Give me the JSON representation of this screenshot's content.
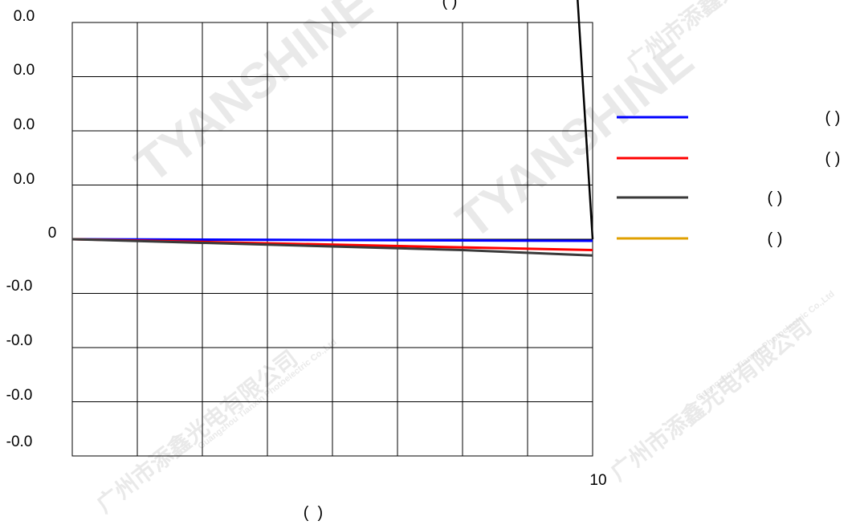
{
  "chart_data": {
    "type": "line",
    "title": "(   )",
    "xlabel": "(  )",
    "ylabel": "",
    "x_tick_labels": [
      "10"
    ],
    "y_tick_labels": [
      "0.0",
      "0.0",
      "0.0",
      "0.0",
      "0",
      "-0.0",
      "-0.0",
      "-0.0",
      "-0.0"
    ],
    "xlim": [
      0,
      10
    ],
    "ylim": [
      -0.04,
      0.04
    ],
    "grid": true,
    "legend_position": "right",
    "series": [
      {
        "name": "( )",
        "color": "#0000ff",
        "x": [
          0,
          10
        ],
        "y": [
          0,
          -0.0003
        ]
      },
      {
        "name": "( )",
        "color": "#ff0000",
        "x": [
          0,
          10
        ],
        "y": [
          0,
          -0.002
        ]
      },
      {
        "name": "( )",
        "color": "#3a3a3a",
        "x": [
          0,
          7.5,
          10
        ],
        "y": [
          0,
          -0.002,
          -0.003
        ]
      },
      {
        "name": "( )",
        "color": "#e0a000",
        "x": [],
        "y": []
      }
    ],
    "annotations": [
      {
        "kind": "steep-line",
        "color": "#000000",
        "x": [
          9.7,
          10
        ],
        "y": [
          0.046,
          0
        ]
      }
    ]
  },
  "watermark": {
    "brand": "TYANSHINE",
    "company_cn": "广州市添鑫光电有限公司",
    "company_en": "Guangzhou Tianxin Photoelectric Co.,Ltd"
  }
}
